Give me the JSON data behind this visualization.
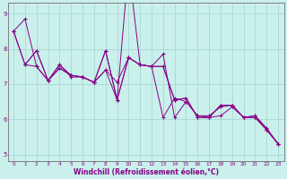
{
  "xlabel": "Windchill (Refroidissement éolien,°C)",
  "background_color": "#caf0ec",
  "line_color": "#880088",
  "grid_color": "#a8d8d4",
  "axis_color": "#606060",
  "xlim": [
    -0.5,
    23.5
  ],
  "ylim": [
    4.8,
    9.3
  ],
  "yticks": [
    5,
    6,
    7,
    8,
    9
  ],
  "xticks": [
    0,
    1,
    2,
    3,
    4,
    5,
    6,
    7,
    8,
    9,
    10,
    11,
    12,
    13,
    14,
    15,
    16,
    17,
    18,
    19,
    20,
    21,
    22,
    23
  ],
  "lines": [
    {
      "x": [
        0,
        1,
        2,
        3,
        4,
        5,
        6,
        7,
        8,
        9,
        10,
        11,
        12,
        13,
        14,
        15,
        16,
        17,
        18,
        19,
        20,
        21,
        22,
        23
      ],
      "y": [
        8.5,
        8.85,
        7.5,
        7.1,
        7.45,
        7.25,
        7.2,
        7.05,
        7.4,
        7.05,
        7.75,
        7.55,
        7.5,
        7.5,
        6.55,
        6.6,
        6.05,
        6.05,
        6.4,
        6.4,
        6.05,
        6.05,
        5.7,
        5.3
      ]
    },
    {
      "x": [
        0,
        1,
        2,
        3,
        4,
        5,
        6,
        7,
        8,
        9,
        10,
        11,
        12,
        13,
        14,
        15,
        16,
        17,
        18,
        19,
        20,
        21,
        22,
        23
      ],
      "y": [
        8.5,
        7.55,
        7.95,
        7.1,
        7.45,
        7.25,
        7.2,
        7.05,
        7.95,
        6.55,
        7.75,
        7.55,
        7.5,
        7.5,
        6.55,
        6.6,
        6.05,
        6.05,
        6.4,
        6.4,
        6.05,
        6.05,
        5.7,
        5.3
      ]
    },
    {
      "x": [
        1,
        2,
        3,
        4,
        5,
        6,
        7,
        8,
        9,
        10,
        11,
        12,
        13,
        14,
        15,
        16,
        17,
        18,
        19,
        20,
        21,
        22,
        23
      ],
      "y": [
        7.55,
        7.95,
        7.1,
        7.55,
        7.25,
        7.2,
        7.05,
        7.95,
        6.55,
        10.35,
        7.55,
        7.5,
        7.85,
        6.05,
        6.5,
        6.1,
        6.05,
        6.1,
        6.35,
        6.05,
        6.1,
        5.7,
        5.3
      ]
    },
    {
      "x": [
        0,
        1,
        2,
        3,
        4,
        5,
        6,
        7,
        8,
        9,
        10,
        11,
        12,
        13,
        14,
        15,
        16,
        17,
        18,
        19,
        20,
        21,
        22,
        23
      ],
      "y": [
        8.5,
        7.55,
        7.5,
        7.1,
        7.55,
        7.2,
        7.2,
        7.05,
        7.4,
        6.55,
        7.75,
        7.55,
        7.5,
        6.05,
        6.6,
        6.5,
        6.1,
        6.1,
        6.35,
        6.4,
        6.05,
        6.1,
        5.75,
        5.3
      ]
    }
  ]
}
